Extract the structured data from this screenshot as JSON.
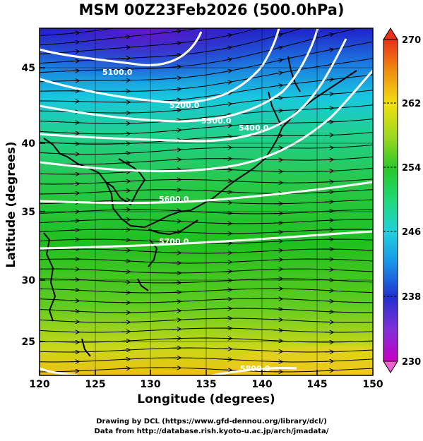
{
  "title": "MSM 00Z23Feb2026 (500.0hPa)",
  "axes": {
    "xlabel": "Longitude (degrees)",
    "ylabel": "Latitude  (degrees)",
    "xticks": [
      "120",
      "125",
      "130",
      "135",
      "140",
      "145",
      "150"
    ],
    "yticks": [
      "25",
      "30",
      "35",
      "40",
      "45"
    ]
  },
  "colorbar": {
    "min": 230,
    "max": 270,
    "ticks": [
      "230",
      "238",
      "246",
      "254",
      "262",
      "270"
    ],
    "colors": [
      "#c800c8",
      "#8030d8",
      "#2030d0",
      "#1890e8",
      "#20d0e0",
      "#20d878",
      "#28c828",
      "#a0d820",
      "#f0e010",
      "#f09010",
      "#e83018"
    ]
  },
  "contours": {
    "labels": [
      "5100.0",
      "5200.0",
      "5300.0",
      "5400.0",
      "5600.0",
      "5700.0",
      "5800.0"
    ]
  },
  "credits": {
    "line1": "Drawing by DCL (https://www.gfd-dennou.org/library/dcl/)",
    "line2": "Data from http://database.rish.kyoto-u.ac.jp/arch/jmadata/"
  }
}
